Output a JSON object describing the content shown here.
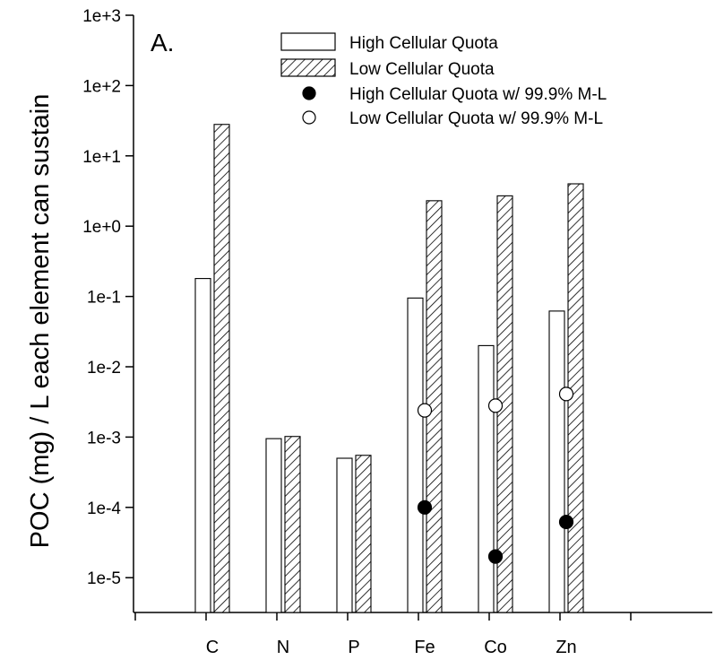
{
  "chart_data": {
    "type": "bar",
    "panel_label": "A.",
    "ylabel": "POC (mg) / L each element can sustain",
    "xlabel": "",
    "yscale": "log",
    "ylim": [
      3.2e-06,
      1000
    ],
    "yticks": [
      {
        "value": 1e-05,
        "label": "1e-5"
      },
      {
        "value": 0.0001,
        "label": "1e-4"
      },
      {
        "value": 0.001,
        "label": "1e-3"
      },
      {
        "value": 0.01,
        "label": "1e-2"
      },
      {
        "value": 0.1,
        "label": "1e-1"
      },
      {
        "value": 1,
        "label": "1e+0"
      },
      {
        "value": 10,
        "label": "1e+1"
      },
      {
        "value": 100,
        "label": "1e+2"
      },
      {
        "value": 1000,
        "label": "1e+3"
      }
    ],
    "categories": [
      "C",
      "N",
      "P",
      "Fe",
      "Co",
      "Zn"
    ],
    "grid": false,
    "legend_position": "top-right",
    "series": [
      {
        "name": "High Cellular Quota",
        "kind": "bar",
        "fill": "open",
        "values": [
          0.18,
          0.00095,
          0.0005,
          0.095,
          0.02,
          0.062
        ]
      },
      {
        "name": "Low Cellular Quota",
        "kind": "bar",
        "fill": "hatched",
        "values": [
          28,
          0.00102,
          0.00055,
          2.3,
          2.7,
          4.0
        ]
      },
      {
        "name": "High Cellular Quota w/ 99.9% M-L",
        "kind": "point",
        "fill": "filled",
        "values": [
          null,
          null,
          null,
          0.0001,
          2e-05,
          6.2e-05
        ]
      },
      {
        "name": "Low Cellular Quota w/ 99.9% M-L",
        "kind": "point",
        "fill": "open",
        "values": [
          null,
          null,
          null,
          0.0024,
          0.0028,
          0.0041
        ]
      }
    ]
  }
}
